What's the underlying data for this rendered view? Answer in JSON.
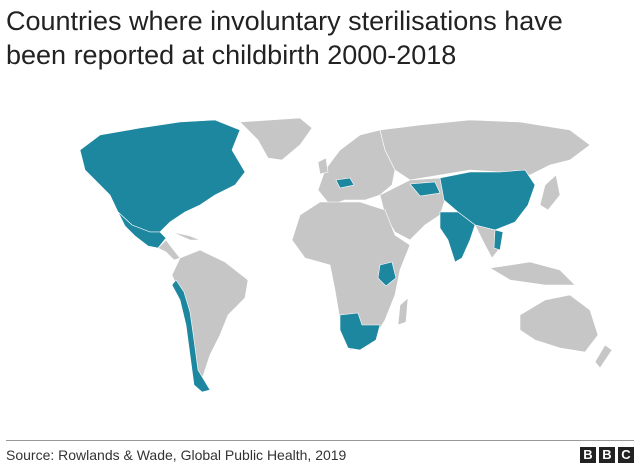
{
  "header": {
    "title": "Countries where involuntary sterilisations have been reported at childbirth 2000-2018"
  },
  "footer": {
    "source": "Source: Rowlands & Wade, Global Public Health, 2019",
    "logo": [
      "B",
      "B",
      "C"
    ]
  }
}
